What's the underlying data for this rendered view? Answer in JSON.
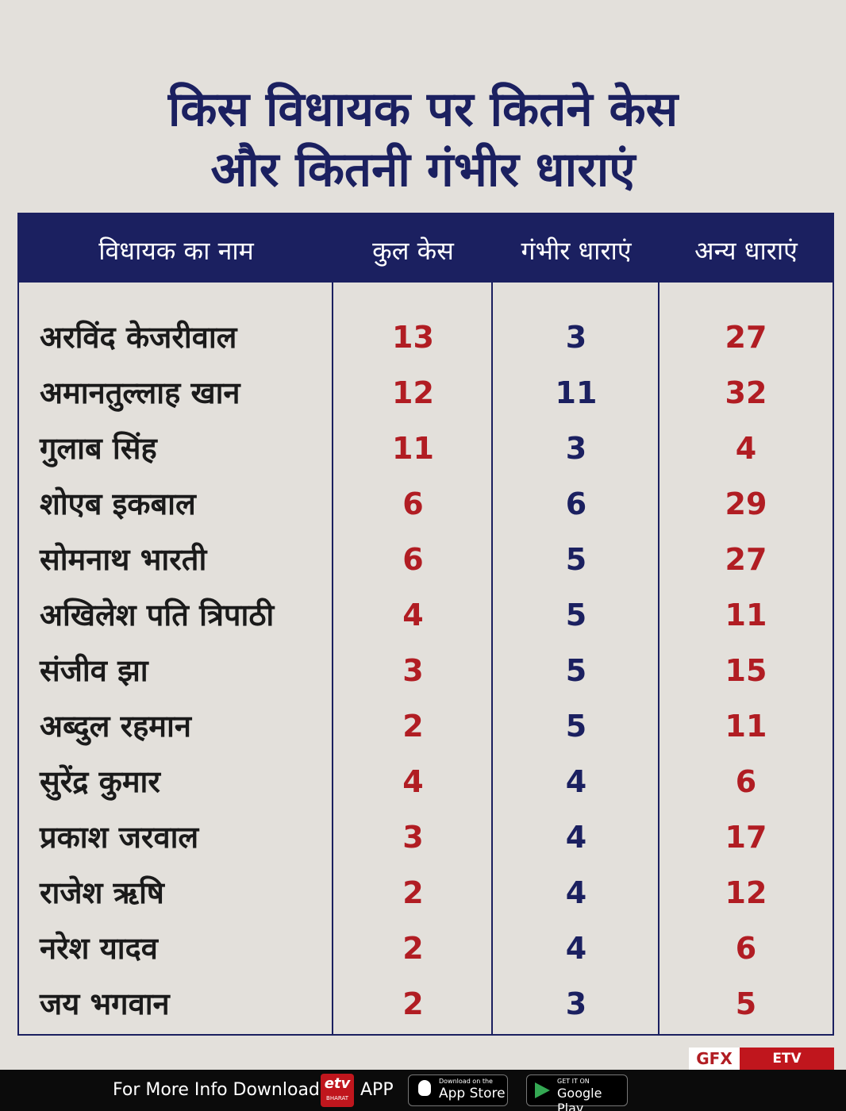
{
  "title": {
    "line1": "किस विधायक पर कितने केस",
    "line2": "और कितनी गंभीर धाराएं"
  },
  "table": {
    "headers": [
      "विधायक का नाम",
      "कुल केस",
      "गंभीर धाराएं",
      "अन्य धाराएं"
    ],
    "rows": [
      [
        "अरविंद केजरीवाल",
        13,
        3,
        27
      ],
      [
        "अमानतुल्लाह खान",
        12,
        11,
        32
      ],
      [
        "गुलाब सिंह",
        11,
        3,
        4
      ],
      [
        "शोएब इकबाल",
        6,
        6,
        29
      ],
      [
        "सोमनाथ भारती",
        6,
        5,
        27
      ],
      [
        "अखिलेश पति त्रिपाठी",
        4,
        5,
        11
      ],
      [
        "संजीव झा",
        3,
        5,
        15
      ],
      [
        "अब्दुल रहमान",
        2,
        5,
        11
      ],
      [
        "सुरेंद्र कुमार",
        4,
        4,
        6
      ],
      [
        "प्रकाश जरवाल",
        3,
        4,
        17
      ],
      [
        "राजेश ऋषि",
        2,
        4,
        12
      ],
      [
        "नरेश यादव",
        2,
        4,
        6
      ],
      [
        "जय भगवान",
        2,
        3,
        5
      ]
    ]
  },
  "credit": {
    "gfx": "GFX",
    "brand": "ETV BHARAT"
  },
  "footer": {
    "text": "For More Info Download",
    "app": "APP",
    "logo_top": "etv",
    "logo_bottom": "BHARAT",
    "appstore_small": "Download on the",
    "appstore": "App Store",
    "play_small": "GET IT ON",
    "play": "Google Play"
  }
}
